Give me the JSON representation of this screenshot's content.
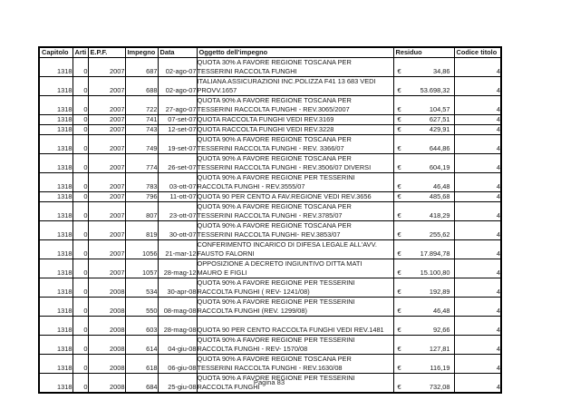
{
  "document": {
    "footer": "Pagina 83",
    "table": {
      "currency_symbol": "€",
      "columns": [
        {
          "key": "capitolo",
          "label": "Capitolo"
        },
        {
          "key": "arti",
          "label": "Arti"
        },
        {
          "key": "epf",
          "label": "E.P.F."
        },
        {
          "key": "impegno",
          "label": "Impegno"
        },
        {
          "key": "data",
          "label": "Data"
        },
        {
          "key": "oggetto",
          "label": "Oggetto dell'impegno"
        },
        {
          "key": "residuo",
          "label": "Residuo"
        },
        {
          "key": "codice",
          "label": "Codice titolo"
        }
      ],
      "rows": [
        {
          "capitolo": "1318",
          "arti": "0",
          "epf": "2007",
          "impegno": "687",
          "data": "02-ago-07",
          "oggetto": "QUOTA 30% A FAVORE REGIONE TOSCANA PER\nTESSERINI RACCOLTA FUNGHI",
          "residuo": "34,86",
          "codice": "4"
        },
        {
          "capitolo": "1318",
          "arti": "0",
          "epf": "2007",
          "impegno": "688",
          "data": "02-ago-07",
          "oggetto": "ITALIANA ASSICURAZIONI INC.POLIZZA F41 13 683 VEDI\nPROVV.1657",
          "residuo": "53.698,32",
          "codice": "4"
        },
        {
          "capitolo": "1318",
          "arti": "0",
          "epf": "2007",
          "impegno": "722",
          "data": "27-ago-07",
          "oggetto": "QUOTA 90% A FAVORE REGIONE TOSCANA PER\nTESSERINI RACCOLTA FUNGHI - REV.3065/2007",
          "residuo": "104,57",
          "codice": "4"
        },
        {
          "capitolo": "1318",
          "arti": "0",
          "epf": "2007",
          "impegno": "741",
          "data": "07-set-07",
          "oggetto": "QUOTA RACCOLTA FUNGHI VEDI REV.3169",
          "residuo": "627,51",
          "codice": "4"
        },
        {
          "capitolo": "1318",
          "arti": "0",
          "epf": "2007",
          "impegno": "743",
          "data": "12-set-07",
          "oggetto": "QUOTA RACCOLTA FUNGHI VEDI REV.3228",
          "residuo": "429,91",
          "codice": "4"
        },
        {
          "capitolo": "1318",
          "arti": "0",
          "epf": "2007",
          "impegno": "749",
          "data": "19-set-07",
          "oggetto": "QUOTA 90% A FAVORE REGIONE TOSCANA PER\nTESSERINI RACCOLTA FUNGHI - REV. 3366/07",
          "residuo": "644,86",
          "codice": "4"
        },
        {
          "capitolo": "1318",
          "arti": "0",
          "epf": "2007",
          "impegno": "774",
          "data": "26-set-07",
          "oggetto": "QUOTA 90% A FAVORE REGIONE TOSCANA PER\nTESSERINI RACCOLTA FUNGHI - REV.3506/07 DIVERSI",
          "residuo": "604,19",
          "codice": "4"
        },
        {
          "capitolo": "1318",
          "arti": "0",
          "epf": "2007",
          "impegno": "783",
          "data": "03-ott-07",
          "oggetto": "QUOTA 90% A FAVORE REGIONE PER TESSERINI\nRACCOLTA FUNGHI - REV.3555/07",
          "residuo": "46,48",
          "codice": "4"
        },
        {
          "capitolo": "1318",
          "arti": "0",
          "epf": "2007",
          "impegno": "796",
          "data": "11-ott-07",
          "oggetto": "QUOTA 90 PER CENTO A FAV.REGIONE VEDI REV.3656",
          "residuo": "485,68",
          "codice": "4"
        },
        {
          "capitolo": "1318",
          "arti": "0",
          "epf": "2007",
          "impegno": "807",
          "data": "23-ott-07",
          "oggetto": "QUOTA 90% A FAVORE REGIONE TOSCANA PER\nTESSERINI RACCOLTA FUNGHI - REV.3785/07",
          "residuo": "418,29",
          "codice": "4"
        },
        {
          "capitolo": "1318",
          "arti": "0",
          "epf": "2007",
          "impegno": "819",
          "data": "30-ott-07",
          "oggetto": "QUOTA 90% A FAVORE REGIONE TOSCANA PER\nTESSERINI RACCOLTA FUNGHI- REV.3853/07",
          "residuo": "255,62",
          "codice": "4"
        },
        {
          "capitolo": "1318",
          "arti": "0",
          "epf": "2007",
          "impegno": "1056",
          "data": "21-mar-12",
          "oggetto": "CONFERIMENTO INCARICO DI DIFESA LEGALE ALL'AVV.\nFAUSTO FALORNI",
          "residuo": "17.894,78",
          "codice": "4"
        },
        {
          "capitolo": "1318",
          "arti": "0",
          "epf": "2007",
          "impegno": "1057",
          "data": "28-mag-12",
          "oggetto": "OPPOSIZIONE A DECRETO INGIUNTIVO DITTA MATI\nMAURO E FIGLI",
          "residuo": "15.100,80",
          "codice": "4"
        },
        {
          "capitolo": "1318",
          "arti": "0",
          "epf": "2008",
          "impegno": "534",
          "data": "30-apr-08",
          "oggetto": "QUOTA 90% A FAVORE REGIONE PER TESSERINI\nRACCOLTA FUNGHI ( REV- 1241/08)",
          "residuo": "192,89",
          "codice": "4"
        },
        {
          "capitolo": "1318",
          "arti": "0",
          "epf": "2008",
          "impegno": "550",
          "data": "08-mag-08",
          "oggetto": "QUOTA 90% A FAVORE REGIONE PER TESSERINI\nRACCOLTA FUNGHI (REV. 1299/08)",
          "residuo": "46,48",
          "codice": "4"
        },
        {
          "capitolo": "1318",
          "arti": "0",
          "epf": "2008",
          "impegno": "603",
          "data": "28-mag-08",
          "oggetto": "\nQUOTA 90 PER CENTO RACCOLTA FUNGHI VEDI REV.1481",
          "residuo": "92,66",
          "codice": "4"
        },
        {
          "capitolo": "1318",
          "arti": "0",
          "epf": "2008",
          "impegno": "614",
          "data": "04-giu-08",
          "oggetto": "QUOTA 90% A FAVORE REGIONE PER TESSERINI\nRACCOLTA FUNGHI - REV- 1570/08",
          "residuo": "127,81",
          "codice": "4"
        },
        {
          "capitolo": "1318",
          "arti": "0",
          "epf": "2008",
          "impegno": "618",
          "data": "06-giu-08",
          "oggetto": "QUOTA 90% A FAVORE REGIONE TOSCANA PER\nTESSERINI RACCOLTA FUNGHI - REV.1630/08",
          "residuo": "116,19",
          "codice": "4"
        },
        {
          "capitolo": "1318",
          "arti": "0",
          "epf": "2008",
          "impegno": "684",
          "data": "25-giu-08",
          "oggetto": "QUOTA 90% A FAVORE REGIONE PER TESSERINI\nRACCOLTA  FUNGHI",
          "residuo": "732,08",
          "codice": "4"
        }
      ]
    }
  }
}
